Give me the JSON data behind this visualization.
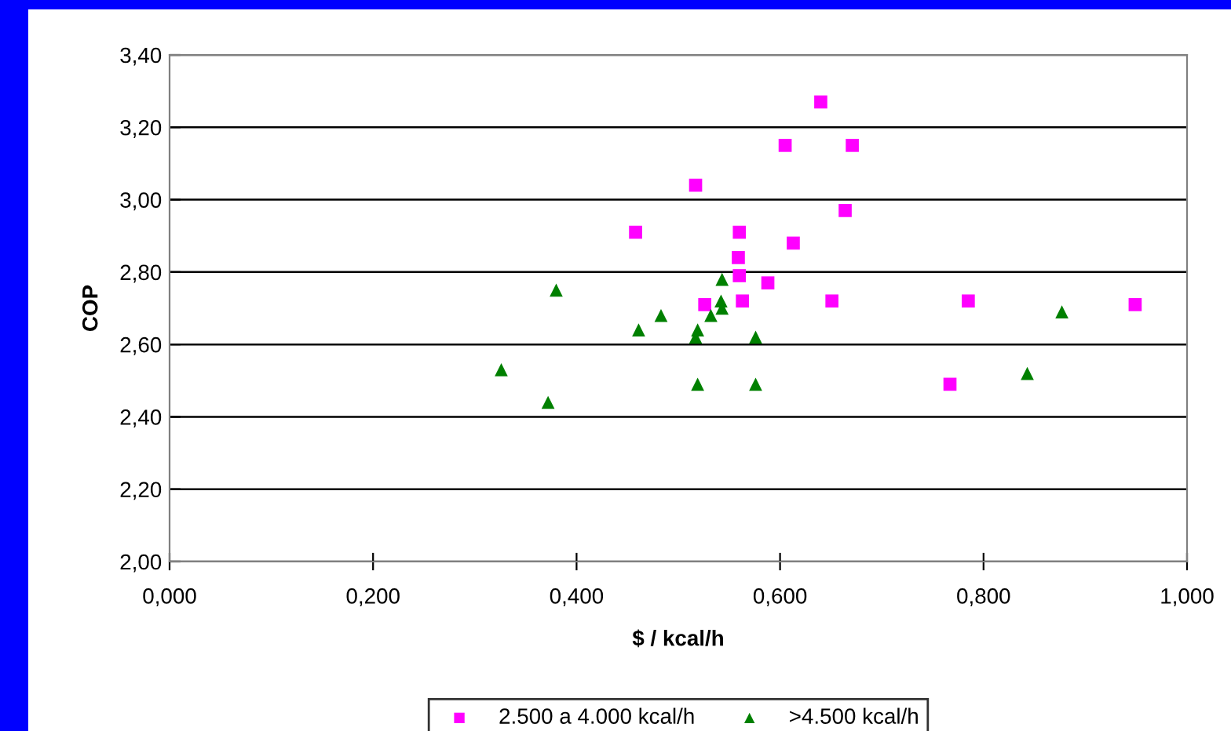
{
  "chart_data": {
    "type": "scatter",
    "xlabel": "$ / kcal/h",
    "ylabel": "COP",
    "xlim": [
      0,
      1
    ],
    "ylim": [
      2,
      3.4
    ],
    "xticks": [
      {
        "value": 0,
        "label": "0,000"
      },
      {
        "value": 0.2,
        "label": "0,200"
      },
      {
        "value": 0.4,
        "label": "0,400"
      },
      {
        "value": 0.6,
        "label": "0,600"
      },
      {
        "value": 0.8,
        "label": "0,800"
      },
      {
        "value": 1,
        "label": "1,000"
      }
    ],
    "yticks": [
      {
        "value": 2,
        "label": "2,00"
      },
      {
        "value": 2.2,
        "label": "2,20"
      },
      {
        "value": 2.4,
        "label": "2,40"
      },
      {
        "value": 2.6,
        "label": "2,60"
      },
      {
        "value": 2.8,
        "label": "2,80"
      },
      {
        "value": 3,
        "label": "3,00"
      },
      {
        "value": 3.2,
        "label": "3,20"
      },
      {
        "value": 3.4,
        "label": "3,40"
      }
    ],
    "grid": "y",
    "legend": "bottom",
    "series": [
      {
        "name": "2.500 a 4.000 kcal/h",
        "color": "#ff00ff",
        "marker": "square",
        "x": [
          0.64,
          0.605,
          0.671,
          0.517,
          0.664,
          0.458,
          0.56,
          0.613,
          0.559,
          0.56,
          0.588,
          0.526,
          0.563,
          0.651,
          0.785,
          0.949,
          0.767
        ],
        "values": [
          3.27,
          3.15,
          3.15,
          3.04,
          2.97,
          2.91,
          2.91,
          2.88,
          2.84,
          2.79,
          2.77,
          2.71,
          2.72,
          2.72,
          2.72,
          2.71,
          2.49
        ]
      },
      {
        "name": ">4.500 kcal/h",
        "color": "#008000",
        "marker": "triangle",
        "x": [
          0.326,
          0.372,
          0.38,
          0.461,
          0.483,
          0.517,
          0.519,
          0.519,
          0.532,
          0.542,
          0.543,
          0.543,
          0.576,
          0.576,
          0.843,
          0.877
        ],
        "values": [
          2.53,
          2.44,
          2.75,
          2.64,
          2.68,
          2.62,
          2.64,
          2.49,
          2.68,
          2.72,
          2.7,
          2.78,
          2.62,
          2.49,
          2.52,
          2.69
        ]
      }
    ]
  }
}
